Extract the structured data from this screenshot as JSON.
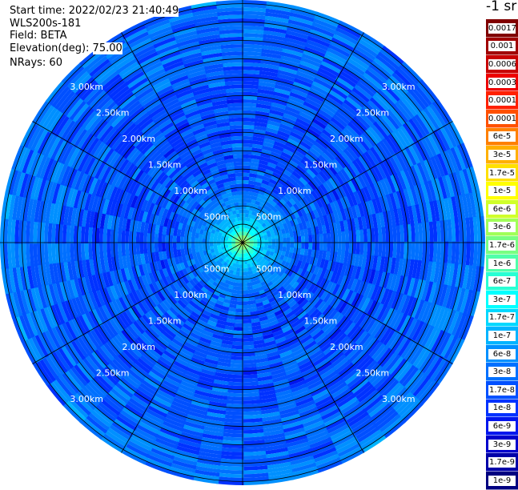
{
  "info": {
    "start_label": "Start time: ",
    "start_value": "2022/02/23 21:40:49",
    "device": "WLS200s-181",
    "field_label": "Field: ",
    "field_value": "BETA",
    "elevation_label": "Elevation(deg): ",
    "elevation_value": "75.00",
    "nrays_label": "NRays: ",
    "nrays_value": "60"
  },
  "colorbar": {
    "title": "-1 sr",
    "levels": [
      "0.0017",
      "0.001",
      "0.0006",
      "0.0003",
      "0.00017",
      "0.0001",
      "6e-5",
      "3e-5",
      "1.7e-5",
      "1e-5",
      "6e-6",
      "3e-6",
      "1.7e-6",
      "1e-6",
      "6e-7",
      "3e-7",
      "1.7e-7",
      "1e-7",
      "6e-8",
      "3e-8",
      "1.7e-8",
      "1e-8",
      "6e-9",
      "3e-9",
      "1.7e-9",
      "1e-9"
    ],
    "colors": [
      "#800000",
      "#a00000",
      "#c80000",
      "#ee0000",
      "#ff2000",
      "#ff5000",
      "#ff8000",
      "#ffb000",
      "#ffe000",
      "#ffff00",
      "#d0ff2a",
      "#a0ff58",
      "#78ff82",
      "#50ffaa",
      "#28ffd4",
      "#00ffff",
      "#00d8ff",
      "#00b4ff",
      "#0090ff",
      "#0070ff",
      "#0050ff",
      "#0032ff",
      "#0016ee",
      "#0000cc",
      "#0000a8",
      "#000080"
    ]
  },
  "chart_data": {
    "type": "ppi",
    "nrays": 60,
    "max_range_km": 3.3,
    "rings": [
      {
        "r_km": 0.5,
        "label": "500m"
      },
      {
        "r_km": 1.0,
        "label": "1.00km"
      },
      {
        "r_km": 1.5,
        "label": "1.50km"
      },
      {
        "r_km": 2.0,
        "label": "2.00km"
      },
      {
        "r_km": 2.5,
        "label": "2.50km"
      },
      {
        "r_km": 3.0,
        "label": "3.00km"
      }
    ],
    "spokes_deg": [
      0,
      30,
      60,
      90,
      120,
      150,
      180,
      210,
      240,
      270,
      300,
      330
    ],
    "radial_profile": [
      {
        "r_km": 0.0,
        "colorbar_index": 10
      },
      {
        "r_km": 0.08,
        "colorbar_index": 12
      },
      {
        "r_km": 0.15,
        "colorbar_index": 14
      },
      {
        "r_km": 0.25,
        "colorbar_index": 16
      },
      {
        "r_km": 0.35,
        "colorbar_index": 17
      },
      {
        "r_km": 0.5,
        "colorbar_index": 18
      },
      {
        "r_km": 0.7,
        "colorbar_index": 19
      },
      {
        "r_km": 1.0,
        "colorbar_index": 20
      },
      {
        "r_km": 2.0,
        "colorbar_index": 20
      },
      {
        "r_km": 3.3,
        "colorbar_index": 19
      }
    ]
  }
}
